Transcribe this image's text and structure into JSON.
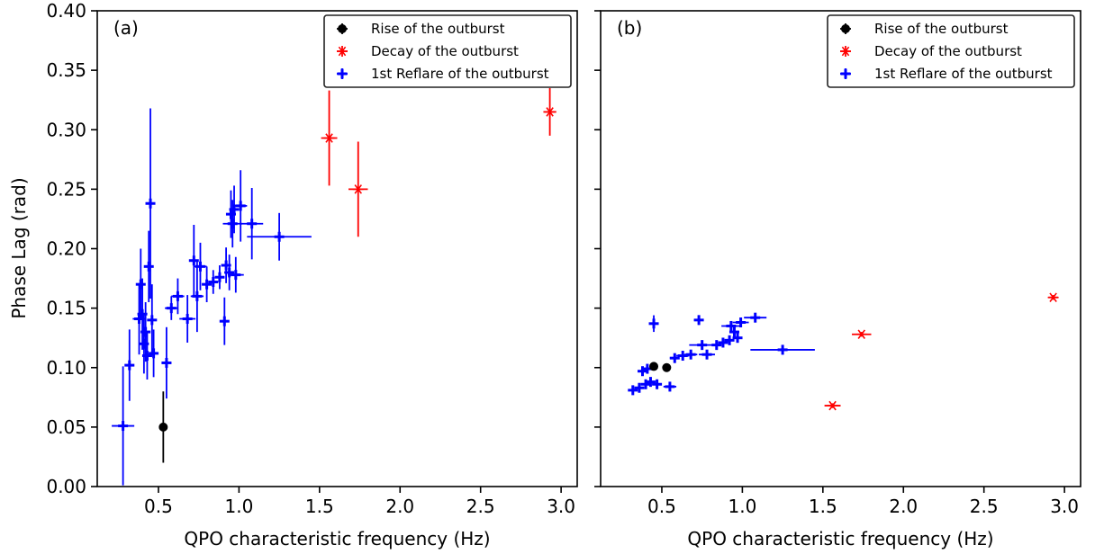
{
  "figure": {
    "ylabel": "Phase Lag (rad)",
    "xlabel": "QPO characteristic frequency (Hz)"
  },
  "legend": {
    "entries": [
      {
        "label": "Rise of the outburst",
        "color": "#000000",
        "marker": "circle"
      },
      {
        "label": "Decay of the outburst",
        "color": "#ff0000",
        "marker": "asterisk"
      },
      {
        "label": "1st Reflare of the outburst",
        "color": "#0000ff",
        "marker": "plus"
      }
    ]
  },
  "chart_data": [
    {
      "type": "scatter",
      "panel_label": "(a)",
      "xlabel": "QPO characteristic frequency (Hz)",
      "ylabel": "Phase Lag (rad)",
      "xlim": [
        0.12,
        3.1
      ],
      "ylim": [
        0.0,
        0.4
      ],
      "xticks": [
        0.5,
        1.0,
        1.5,
        2.0,
        2.5,
        3.0
      ],
      "yticks": [
        0.0,
        0.05,
        0.1,
        0.15,
        0.2,
        0.25,
        0.3,
        0.35,
        0.4
      ],
      "legend_position": "top-right",
      "grid": false,
      "series": [
        {
          "name": "Rise of the outburst",
          "color": "#000000",
          "marker": "circle",
          "points": [
            {
              "x": 0.53,
              "y": 0.05,
              "yerr": 0.03,
              "xerr": 0.01
            }
          ]
        },
        {
          "name": "Decay of the outburst",
          "color": "#ff0000",
          "marker": "asterisk",
          "points": [
            {
              "x": 1.56,
              "y": 0.293,
              "yerr": 0.04,
              "xerr": 0.05
            },
            {
              "x": 1.74,
              "y": 0.25,
              "yerr": 0.04,
              "xerr": 0.06
            },
            {
              "x": 2.93,
              "y": 0.315,
              "yerr": 0.02,
              "xerr": 0.04
            }
          ]
        },
        {
          "name": "1st Reflare of the outburst",
          "color": "#0000ff",
          "marker": "plus",
          "points": [
            {
              "x": 0.28,
              "y": 0.051,
              "xerr": 0.07,
              "yerr": 0.05
            },
            {
              "x": 0.32,
              "y": 0.102,
              "xerr": 0.02,
              "yerr": 0.03
            },
            {
              "x": 0.38,
              "y": 0.141,
              "xerr": 0.04,
              "yerr": 0.03
            },
            {
              "x": 0.39,
              "y": 0.17,
              "xerr": 0.02,
              "yerr": 0.03
            },
            {
              "x": 0.4,
              "y": 0.145,
              "xerr": 0.02,
              "yerr": 0.03
            },
            {
              "x": 0.41,
              "y": 0.12,
              "xerr": 0.02,
              "yerr": 0.025
            },
            {
              "x": 0.42,
              "y": 0.13,
              "xerr": 0.02,
              "yerr": 0.025
            },
            {
              "x": 0.43,
              "y": 0.11,
              "xerr": 0.02,
              "yerr": 0.02
            },
            {
              "x": 0.44,
              "y": 0.185,
              "xerr": 0.02,
              "yerr": 0.03
            },
            {
              "x": 0.45,
              "y": 0.238,
              "xerr": 0.01,
              "yerr": 0.08
            },
            {
              "x": 0.46,
              "y": 0.14,
              "xerr": 0.02,
              "yerr": 0.03
            },
            {
              "x": 0.47,
              "y": 0.112,
              "xerr": 0.03,
              "yerr": 0.02
            },
            {
              "x": 0.55,
              "y": 0.104,
              "xerr": 0.03,
              "yerr": 0.03
            },
            {
              "x": 0.58,
              "y": 0.15,
              "xerr": 0.04,
              "yerr": 0.01
            },
            {
              "x": 0.62,
              "y": 0.16,
              "xerr": 0.04,
              "yerr": 0.015
            },
            {
              "x": 0.68,
              "y": 0.141,
              "xerr": 0.05,
              "yerr": 0.02
            },
            {
              "x": 0.72,
              "y": 0.19,
              "xerr": 0.02,
              "yerr": 0.03
            },
            {
              "x": 0.74,
              "y": 0.16,
              "xerr": 0.04,
              "yerr": 0.03
            },
            {
              "x": 0.76,
              "y": 0.185,
              "xerr": 0.04,
              "yerr": 0.02
            },
            {
              "x": 0.8,
              "y": 0.17,
              "xerr": 0.03,
              "yerr": 0.015
            },
            {
              "x": 0.84,
              "y": 0.172,
              "xerr": 0.03,
              "yerr": 0.01
            },
            {
              "x": 0.88,
              "y": 0.176,
              "xerr": 0.03,
              "yerr": 0.01
            },
            {
              "x": 0.91,
              "y": 0.139,
              "xerr": 0.02,
              "yerr": 0.02
            },
            {
              "x": 0.92,
              "y": 0.186,
              "xerr": 0.02,
              "yerr": 0.015
            },
            {
              "x": 0.94,
              "y": 0.18,
              "xerr": 0.03,
              "yerr": 0.015
            },
            {
              "x": 0.95,
              "y": 0.229,
              "xerr": 0.03,
              "yerr": 0.02
            },
            {
              "x": 0.96,
              "y": 0.221,
              "xerr": 0.06,
              "yerr": 0.02
            },
            {
              "x": 0.97,
              "y": 0.233,
              "xerr": 0.02,
              "yerr": 0.02
            },
            {
              "x": 0.98,
              "y": 0.178,
              "xerr": 0.05,
              "yerr": 0.015
            },
            {
              "x": 1.01,
              "y": 0.236,
              "xerr": 0.04,
              "yerr": 0.03
            },
            {
              "x": 1.08,
              "y": 0.221,
              "xerr": 0.07,
              "yerr": 0.03
            },
            {
              "x": 1.25,
              "y": 0.21,
              "xerr": 0.2,
              "yerr": 0.02
            }
          ]
        }
      ]
    },
    {
      "type": "scatter",
      "panel_label": "(b)",
      "xlabel": "QPO characteristic frequency (Hz)",
      "ylabel": "",
      "xlim": [
        0.12,
        3.1
      ],
      "ylim": [
        0.0,
        0.4
      ],
      "xticks": [
        0.5,
        1.0,
        1.5,
        2.0,
        2.5,
        3.0
      ],
      "yticks": [
        0.0,
        0.05,
        0.1,
        0.15,
        0.2,
        0.25,
        0.3,
        0.35,
        0.4
      ],
      "legend_position": "top-right",
      "grid": false,
      "series": [
        {
          "name": "Rise of the outburst",
          "color": "#000000",
          "marker": "circle",
          "points": [
            {
              "x": 0.45,
              "y": 0.101,
              "yerr": 0.002,
              "xerr": 0.01
            },
            {
              "x": 0.53,
              "y": 0.1,
              "yerr": 0.002,
              "xerr": 0.01
            }
          ]
        },
        {
          "name": "Decay of the outburst",
          "color": "#ff0000",
          "marker": "asterisk",
          "points": [
            {
              "x": 1.56,
              "y": 0.068,
              "yerr": 0.002,
              "xerr": 0.05
            },
            {
              "x": 1.74,
              "y": 0.128,
              "yerr": 0.002,
              "xerr": 0.06
            },
            {
              "x": 2.93,
              "y": 0.159,
              "yerr": 0.002,
              "xerr": 0.03
            }
          ]
        },
        {
          "name": "1st Reflare of the outburst",
          "color": "#0000ff",
          "marker": "plus",
          "points": [
            {
              "x": 0.32,
              "y": 0.081,
              "xerr": 0.02,
              "yerr": 0.003
            },
            {
              "x": 0.36,
              "y": 0.083,
              "xerr": 0.03,
              "yerr": 0.003
            },
            {
              "x": 0.38,
              "y": 0.097,
              "xerr": 0.03,
              "yerr": 0.004
            },
            {
              "x": 0.4,
              "y": 0.086,
              "xerr": 0.03,
              "yerr": 0.003
            },
            {
              "x": 0.41,
              "y": 0.099,
              "xerr": 0.03,
              "yerr": 0.004
            },
            {
              "x": 0.43,
              "y": 0.088,
              "xerr": 0.03,
              "yerr": 0.003
            },
            {
              "x": 0.45,
              "y": 0.137,
              "xerr": 0.02,
              "yerr": 0.007
            },
            {
              "x": 0.47,
              "y": 0.086,
              "xerr": 0.03,
              "yerr": 0.003
            },
            {
              "x": 0.55,
              "y": 0.084,
              "xerr": 0.04,
              "yerr": 0.003
            },
            {
              "x": 0.58,
              "y": 0.108,
              "xerr": 0.03,
              "yerr": 0.003
            },
            {
              "x": 0.63,
              "y": 0.11,
              "xerr": 0.04,
              "yerr": 0.003
            },
            {
              "x": 0.68,
              "y": 0.111,
              "xerr": 0.04,
              "yerr": 0.003
            },
            {
              "x": 0.73,
              "y": 0.14,
              "xerr": 0.03,
              "yerr": 0.004
            },
            {
              "x": 0.75,
              "y": 0.119,
              "xerr": 0.08,
              "yerr": 0.003
            },
            {
              "x": 0.78,
              "y": 0.111,
              "xerr": 0.05,
              "yerr": 0.003
            },
            {
              "x": 0.84,
              "y": 0.119,
              "xerr": 0.03,
              "yerr": 0.003
            },
            {
              "x": 0.88,
              "y": 0.121,
              "xerr": 0.03,
              "yerr": 0.003
            },
            {
              "x": 0.92,
              "y": 0.123,
              "xerr": 0.03,
              "yerr": 0.003
            },
            {
              "x": 0.93,
              "y": 0.135,
              "xerr": 0.06,
              "yerr": 0.004
            },
            {
              "x": 0.95,
              "y": 0.13,
              "xerr": 0.03,
              "yerr": 0.003
            },
            {
              "x": 0.97,
              "y": 0.125,
              "xerr": 0.03,
              "yerr": 0.003
            },
            {
              "x": 0.99,
              "y": 0.138,
              "xerr": 0.05,
              "yerr": 0.004
            },
            {
              "x": 1.08,
              "y": 0.142,
              "xerr": 0.07,
              "yerr": 0.004
            },
            {
              "x": 1.25,
              "y": 0.115,
              "xerr": 0.2,
              "yerr": 0.004
            }
          ]
        }
      ]
    }
  ]
}
